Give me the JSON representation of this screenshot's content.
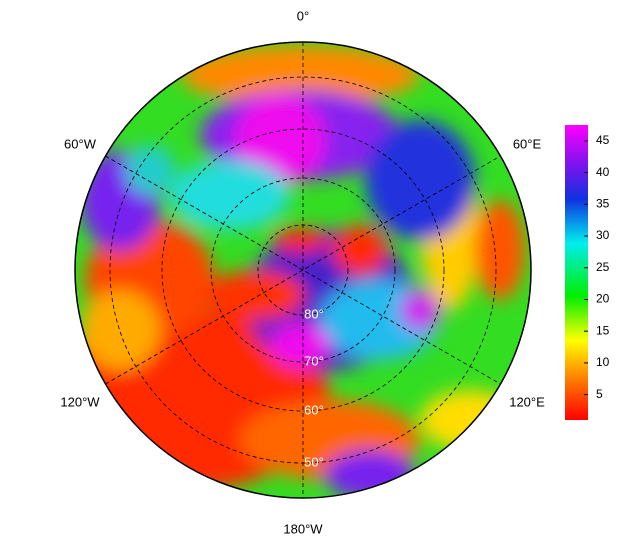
{
  "map": {
    "meridian_labels": [
      "0°",
      "60°W",
      "60°E",
      "120°W",
      "120°E",
      "180°W"
    ],
    "latitude_labels": [
      "80°",
      "70°",
      "60°",
      "50°"
    ]
  },
  "colorbar": {
    "lim": [
      1,
      47.5
    ],
    "ticks": [
      5,
      10,
      15,
      20,
      25,
      30,
      35,
      40,
      45
    ]
  }
}
